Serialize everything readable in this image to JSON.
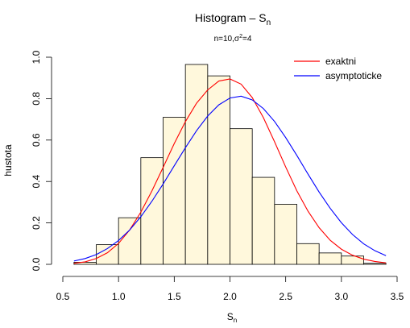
{
  "chart_data": {
    "type": "bar",
    "title_main": "Histogram – S",
    "title_sub": "n",
    "subtitle_main": "n=10,σ",
    "subtitle_sup": "2",
    "subtitle_rest": "=4",
    "xlabel_main": "S",
    "xlabel_sub": "n",
    "ylabel": "hustota",
    "xlim": [
      0.6,
      3.4
    ],
    "ylim": [
      0,
      1.0
    ],
    "xticks": [
      "0.5",
      "1.0",
      "1.5",
      "2.0",
      "2.5",
      "3.0",
      "3.5"
    ],
    "xtick_values": [
      0.5,
      1.0,
      1.5,
      2.0,
      2.5,
      3.0,
      3.5
    ],
    "yticks": [
      "0.0",
      "0.2",
      "0.4",
      "0.6",
      "0.8",
      "1.0"
    ],
    "ytick_values": [
      0.0,
      0.2,
      0.4,
      0.6,
      0.8,
      1.0
    ],
    "bins": [
      {
        "x0": 0.6,
        "x1": 0.8,
        "density": 0.01
      },
      {
        "x0": 0.8,
        "x1": 1.0,
        "density": 0.095
      },
      {
        "x0": 1.0,
        "x1": 1.2,
        "density": 0.225
      },
      {
        "x0": 1.2,
        "x1": 1.4,
        "density": 0.515
      },
      {
        "x0": 1.4,
        "x1": 1.6,
        "density": 0.71
      },
      {
        "x0": 1.6,
        "x1": 1.8,
        "density": 0.965
      },
      {
        "x0": 1.8,
        "x1": 2.0,
        "density": 0.91
      },
      {
        "x0": 2.0,
        "x1": 2.2,
        "density": 0.655
      },
      {
        "x0": 2.2,
        "x1": 2.4,
        "density": 0.42
      },
      {
        "x0": 2.4,
        "x1": 2.6,
        "density": 0.29
      },
      {
        "x0": 2.6,
        "x1": 2.8,
        "density": 0.1
      },
      {
        "x0": 2.8,
        "x1": 3.0,
        "density": 0.055
      },
      {
        "x0": 3.0,
        "x1": 3.2,
        "density": 0.04
      },
      {
        "x0": 3.2,
        "x1": 3.4,
        "density": 0.005
      }
    ],
    "bar_fill": "#fff8dc",
    "series": [
      {
        "name": "exaktni",
        "color": "#ff0000",
        "x": [
          0.6,
          0.7,
          0.8,
          0.9,
          1.0,
          1.1,
          1.2,
          1.3,
          1.4,
          1.5,
          1.6,
          1.7,
          1.8,
          1.9,
          2.0,
          2.1,
          2.2,
          2.3,
          2.4,
          2.5,
          2.6,
          2.7,
          2.8,
          2.9,
          3.0,
          3.1,
          3.2,
          3.3,
          3.4
        ],
        "y": [
          0.005,
          0.012,
          0.028,
          0.056,
          0.101,
          0.166,
          0.252,
          0.355,
          0.468,
          0.583,
          0.689,
          0.778,
          0.842,
          0.885,
          0.895,
          0.87,
          0.805,
          0.708,
          0.592,
          0.47,
          0.355,
          0.257,
          0.177,
          0.116,
          0.073,
          0.044,
          0.025,
          0.014,
          0.007
        ]
      },
      {
        "name": "asymptoticke",
        "color": "#0000ff",
        "x": [
          0.6,
          0.7,
          0.8,
          0.9,
          1.0,
          1.1,
          1.2,
          1.3,
          1.4,
          1.5,
          1.6,
          1.7,
          1.8,
          1.9,
          2.0,
          2.1,
          2.2,
          2.3,
          2.4,
          2.5,
          2.6,
          2.7,
          2.8,
          2.9,
          3.0,
          3.1,
          3.2,
          3.3,
          3.4
        ],
        "y": [
          0.016,
          0.028,
          0.047,
          0.076,
          0.115,
          0.166,
          0.23,
          0.305,
          0.388,
          0.476,
          0.563,
          0.645,
          0.716,
          0.77,
          0.803,
          0.812,
          0.794,
          0.752,
          0.69,
          0.612,
          0.526,
          0.436,
          0.349,
          0.27,
          0.201,
          0.144,
          0.099,
          0.066,
          0.042
        ]
      }
    ],
    "legend_position": "top-right"
  }
}
